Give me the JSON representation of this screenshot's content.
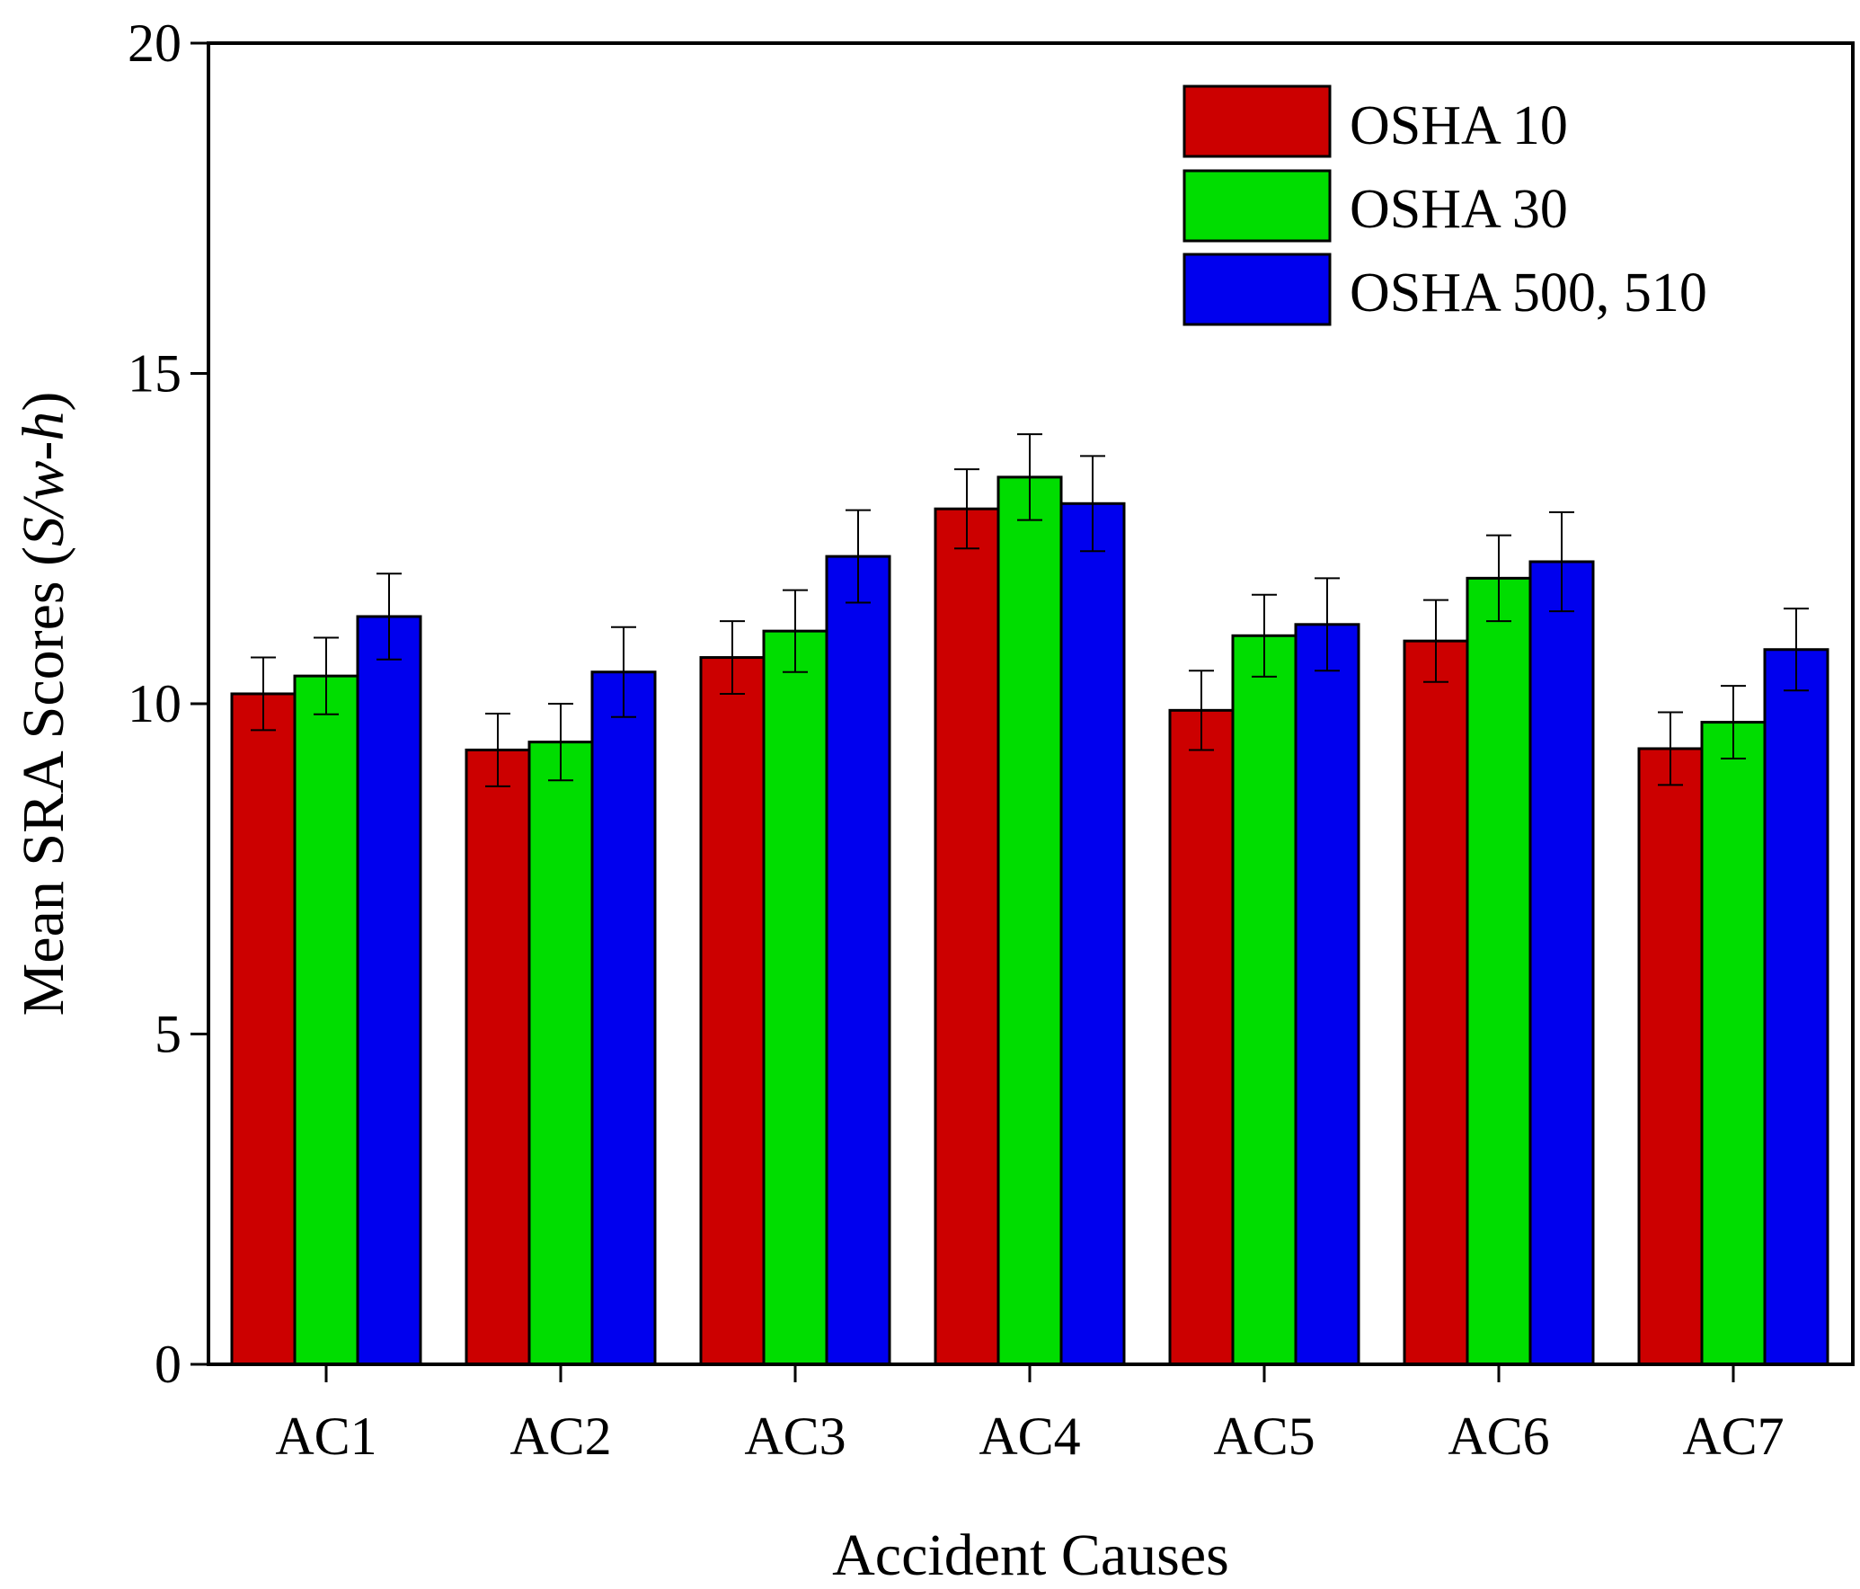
{
  "chart_data": {
    "type": "bar",
    "xlabel": "Accident Causes",
    "ylabel": "Mean SRA Scores (",
    "ylabel_italic": "S/w-h",
    "ylim": [
      0,
      20
    ],
    "yticks": [
      "0",
      "5",
      "10",
      "15",
      "20"
    ],
    "categories": [
      "AC1",
      "AC2",
      "AC3",
      "AC4",
      "AC5",
      "AC6",
      "AC7"
    ],
    "series": [
      {
        "name": "OSHA 10",
        "color": "#cc0000",
        "values": [
          10.15,
          9.3,
          10.7,
          12.95,
          9.9,
          10.95,
          9.32
        ],
        "errors": [
          0.55,
          0.55,
          0.55,
          0.6,
          0.6,
          0.62,
          0.55
        ]
      },
      {
        "name": "OSHA 30",
        "color": "#00dd00",
        "values": [
          10.42,
          9.42,
          11.1,
          13.43,
          11.03,
          11.9,
          9.72
        ],
        "errors": [
          0.58,
          0.58,
          0.62,
          0.65,
          0.62,
          0.65,
          0.55
        ]
      },
      {
        "name": "OSHA 500, 510",
        "color": "#0000ee",
        "values": [
          11.32,
          10.48,
          12.23,
          13.03,
          11.2,
          12.15,
          10.82
        ],
        "errors": [
          0.65,
          0.68,
          0.7,
          0.72,
          0.7,
          0.75,
          0.62
        ]
      }
    ],
    "grid": false,
    "legend_position": "top-right"
  }
}
